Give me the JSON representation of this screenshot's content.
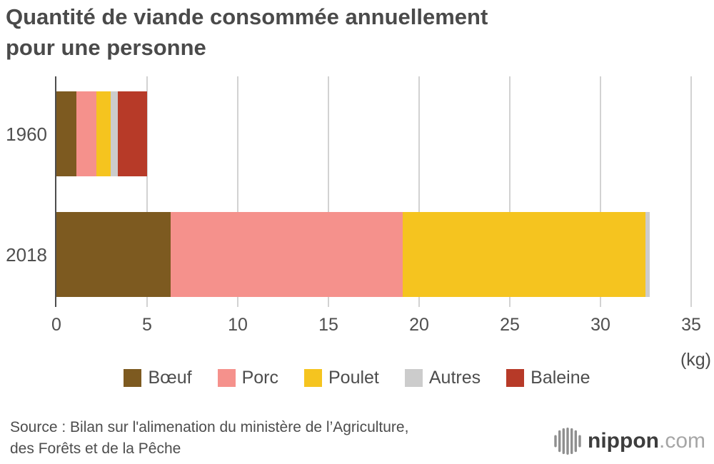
{
  "title": {
    "line1": "Quantité de viande consommée annuellement",
    "line2": "pour une personne"
  },
  "chart_data": {
    "type": "bar",
    "orientation": "horizontal",
    "stacked": true,
    "categories": [
      "1960",
      "2018"
    ],
    "series": [
      {
        "name": "Bœuf",
        "color": "#7d5a20",
        "values": [
          1.1,
          6.3
        ]
      },
      {
        "name": "Porc",
        "color": "#f5918c",
        "values": [
          1.1,
          12.8
        ]
      },
      {
        "name": "Poulet",
        "color": "#f5c41f",
        "values": [
          0.8,
          13.4
        ]
      },
      {
        "name": "Autres",
        "color": "#cccccc",
        "values": [
          0.4,
          0.2
        ]
      },
      {
        "name": "Baleine",
        "color": "#b73a28",
        "values": [
          1.6,
          0
        ]
      }
    ],
    "xlim": [
      0,
      35
    ],
    "xticks": [
      0,
      5,
      10,
      15,
      20,
      25,
      30,
      35
    ],
    "unit_label": "(kg)",
    "grid": true,
    "legend_position": "bottom"
  },
  "source": {
    "line1": "Source : Bilan sur l'alimenation du ministère de l’Agriculture,",
    "line2": "des Forêts et de la Pêche"
  },
  "logo": {
    "name": "nippon",
    "tld": ".com"
  }
}
